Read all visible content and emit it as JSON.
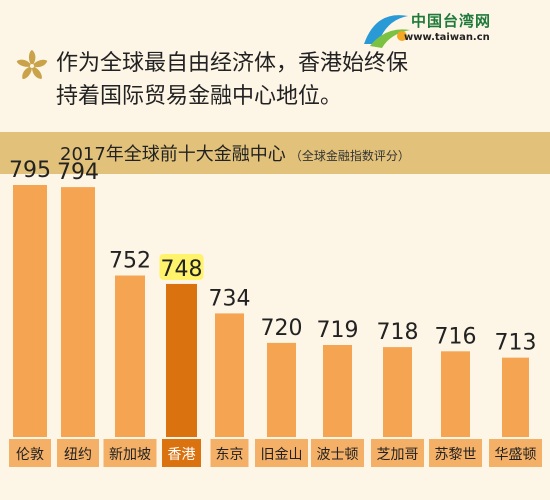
{
  "logo": {
    "name": "中国台湾网",
    "url": "www.taiwan.cn"
  },
  "headline": {
    "line1": "作为全球最自由经济体，香港始终保",
    "line2": "持着国际贸易金融中心地位。"
  },
  "chart_data": {
    "type": "bar",
    "title": "2017年全球前十大金融中心",
    "subtitle": "（全球金融指数评分）",
    "categories": [
      "伦敦",
      "纽约",
      "新加坡",
      "香港",
      "东京",
      "旧金山",
      "波士顿",
      "芝加哥",
      "苏黎世",
      "华盛顿"
    ],
    "values": [
      795,
      794,
      752,
      748,
      734,
      720,
      719,
      718,
      716,
      713
    ],
    "highlight": "香港",
    "colors": {
      "bar": "#f5a552",
      "highlight": "#d9720f",
      "highlight_label": "#fff36b",
      "label_box": "#f5b067"
    }
  }
}
